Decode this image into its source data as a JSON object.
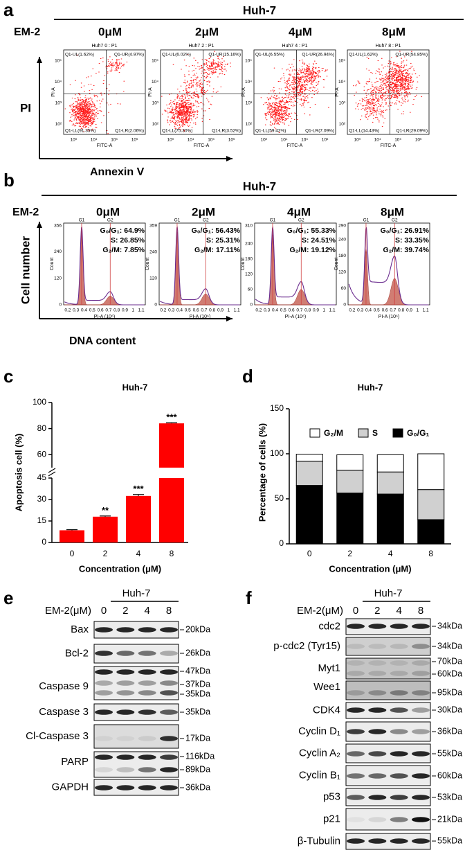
{
  "panel_a": {
    "letter": "a",
    "group": "Huh-7",
    "treatment": "EM-2",
    "y_label": "PI",
    "x_label": "Annexin V",
    "x_axis": "FITC-A",
    "y_axis": "PI-A",
    "xticks": [
      "10³",
      "10⁴",
      "10⁵",
      "10⁶"
    ],
    "yticks": [
      "10²",
      "10³",
      "10⁴",
      "10⁵"
    ],
    "plots": [
      {
        "dose": "0μM",
        "title": "Huh7 0 : P1",
        "ul": "Q1-UL(1.62%)",
        "ur": "Q1-UR(4.97%)",
        "ll": "Q1-LL(91.35%)",
        "lr": "Q1-LR(2.06%)"
      },
      {
        "dose": "2μM",
        "title": "Huh7 2 : P1",
        "ul": "Q1-UL(6.02%)",
        "ur": "Q1-UR(15.16%)",
        "ll": "Q1-LL(75.30%)",
        "lr": "Q1-LR(3.52%)"
      },
      {
        "dose": "4μM",
        "title": "Huh7 4 : P1",
        "ul": "Q1-UL(6.55%)",
        "ur": "Q1-UR(26.94%)",
        "ll": "Q1-LL(59.42%)",
        "lr": "Q1-LR(7.09%)"
      },
      {
        "dose": "8μM",
        "title": "Huh7 8 : P1",
        "ul": "Q1-UL(1.62%)",
        "ur": "Q1-UR(54.85%)",
        "ll": "Q1-LL(14.43%)",
        "lr": "Q1-LR(29.09%)"
      }
    ]
  },
  "panel_b": {
    "letter": "b",
    "group": "Huh-7",
    "treatment": "EM-2",
    "y_label": "Cell number",
    "x_label": "DNA content",
    "x_axis": "PI-A (10⁶)",
    "y_axis": "Count",
    "peak_g1": "G1",
    "peak_g2": "G2",
    "xticks": [
      0.2,
      0.3,
      0.4,
      0.5,
      0.6,
      0.7,
      0.8,
      0.9,
      1,
      1.1
    ],
    "plots": [
      {
        "dose": "0μM",
        "g1": "G₀/G₁: 64.9%",
        "s": "S: 26.85%",
        "g2m": "G₂/M: 7.85%",
        "yticks": [
          0,
          120,
          240,
          356
        ]
      },
      {
        "dose": "2μM",
        "g1": "G₀/G₁: 56.43%",
        "s": "S: 25.31%",
        "g2m": "G₂/M: 17.11%",
        "yticks": [
          0,
          120,
          240,
          359
        ]
      },
      {
        "dose": "4μM",
        "g1": "G₀/G₁: 55.33%",
        "s": "S: 24.51%",
        "g2m": "G₂/M: 19.12%",
        "yticks": [
          0,
          60,
          120,
          180,
          240,
          310
        ]
      },
      {
        "dose": "8μM",
        "g1": "G₀/G₁: 26.91%",
        "s": "S: 33.35%",
        "g2m": "G₂/M: 39.74%",
        "yticks": [
          0,
          60,
          120,
          180,
          240,
          290
        ]
      }
    ]
  },
  "chart_data": [
    {
      "type": "bar",
      "panel_label": "c",
      "title": "Huh-7",
      "x_label": "Concentration (μM)",
      "y_label": "Apoptosis cell (%)",
      "categories": [
        "0",
        "2",
        "4",
        "8"
      ],
      "values": [
        8.5,
        18,
        32.5,
        84
      ],
      "errors": [
        0.4,
        0.5,
        1,
        0.5
      ],
      "annotations": [
        null,
        "**",
        "***",
        "***"
      ],
      "color": "#ff0000",
      "ylim": [
        0,
        100
      ],
      "yticks": [
        0,
        15,
        30,
        45,
        60,
        80,
        100
      ],
      "ybreak": [
        45,
        50
      ]
    },
    {
      "type": "stacked_bar",
      "panel_label": "d",
      "title": "Huh-7",
      "x_label": "Concentration (μM)",
      "y_label": "Percentage of cells (%)",
      "categories": [
        "0",
        "2",
        "4",
        "8"
      ],
      "series": [
        {
          "name": "G₀/G₁",
          "color": "#000000",
          "values": [
            64.9,
            56.43,
            55.33,
            26.91
          ]
        },
        {
          "name": "S",
          "color": "#d0d0d0",
          "values": [
            26.85,
            25.31,
            24.51,
            33.35
          ]
        },
        {
          "name": "G₂/M",
          "color": "#ffffff",
          "values": [
            7.85,
            17.11,
            19.12,
            39.74
          ]
        }
      ],
      "ylim": [
        0,
        150
      ],
      "yticks": [
        0,
        50,
        100,
        150
      ],
      "legend": "top"
    }
  ],
  "panel_e": {
    "letter": "e",
    "group": "Huh-7",
    "treatment": "EM-2(μM)",
    "doses": [
      "0",
      "2",
      "4",
      "8"
    ],
    "blots": [
      {
        "protein": "Bax",
        "sizes": [
          "20kDa"
        ]
      },
      {
        "protein": "Bcl-2",
        "sizes": [
          "26kDa"
        ]
      },
      {
        "protein": "Caspase 9",
        "sizes": [
          "47kDa",
          "37kDa",
          "35kDa"
        ]
      },
      {
        "protein": "Caspase 3",
        "sizes": [
          "35kDa"
        ]
      },
      {
        "protein": "Cl-Caspase 3",
        "sizes": [
          "17kDa"
        ]
      },
      {
        "protein": "PARP",
        "sizes": [
          "116kDa",
          "89kDa"
        ]
      },
      {
        "protein": "GAPDH",
        "sizes": [
          "36kDa"
        ]
      }
    ]
  },
  "panel_f": {
    "letter": "f",
    "group": "Huh-7",
    "treatment": "EM-2(μM)",
    "doses": [
      "0",
      "2",
      "4",
      "8"
    ],
    "blots": [
      {
        "protein": "cdc2",
        "sizes": [
          "34kDa"
        ]
      },
      {
        "protein": "p-cdc2 (Tyr15)",
        "sizes": [
          "34kDa"
        ]
      },
      {
        "protein": "Myt1",
        "sizes": [
          "70kDa",
          "60kDa"
        ]
      },
      {
        "protein": "Wee1",
        "sizes": [
          "95kDa"
        ]
      },
      {
        "protein": "CDK4",
        "sizes": [
          "30kDa"
        ]
      },
      {
        "protein": "Cyclin D₁",
        "sizes": [
          "36kDa"
        ]
      },
      {
        "protein": "Cyclin A₂",
        "sizes": [
          "55kDa"
        ]
      },
      {
        "protein": "Cyclin B₁",
        "sizes": [
          "60kDa"
        ]
      },
      {
        "protein": "p53",
        "sizes": [
          "53kDa"
        ]
      },
      {
        "protein": "p21",
        "sizes": [
          "21kDa"
        ]
      },
      {
        "protein": "β-Tubulin",
        "sizes": [
          "55kDa"
        ]
      }
    ]
  }
}
